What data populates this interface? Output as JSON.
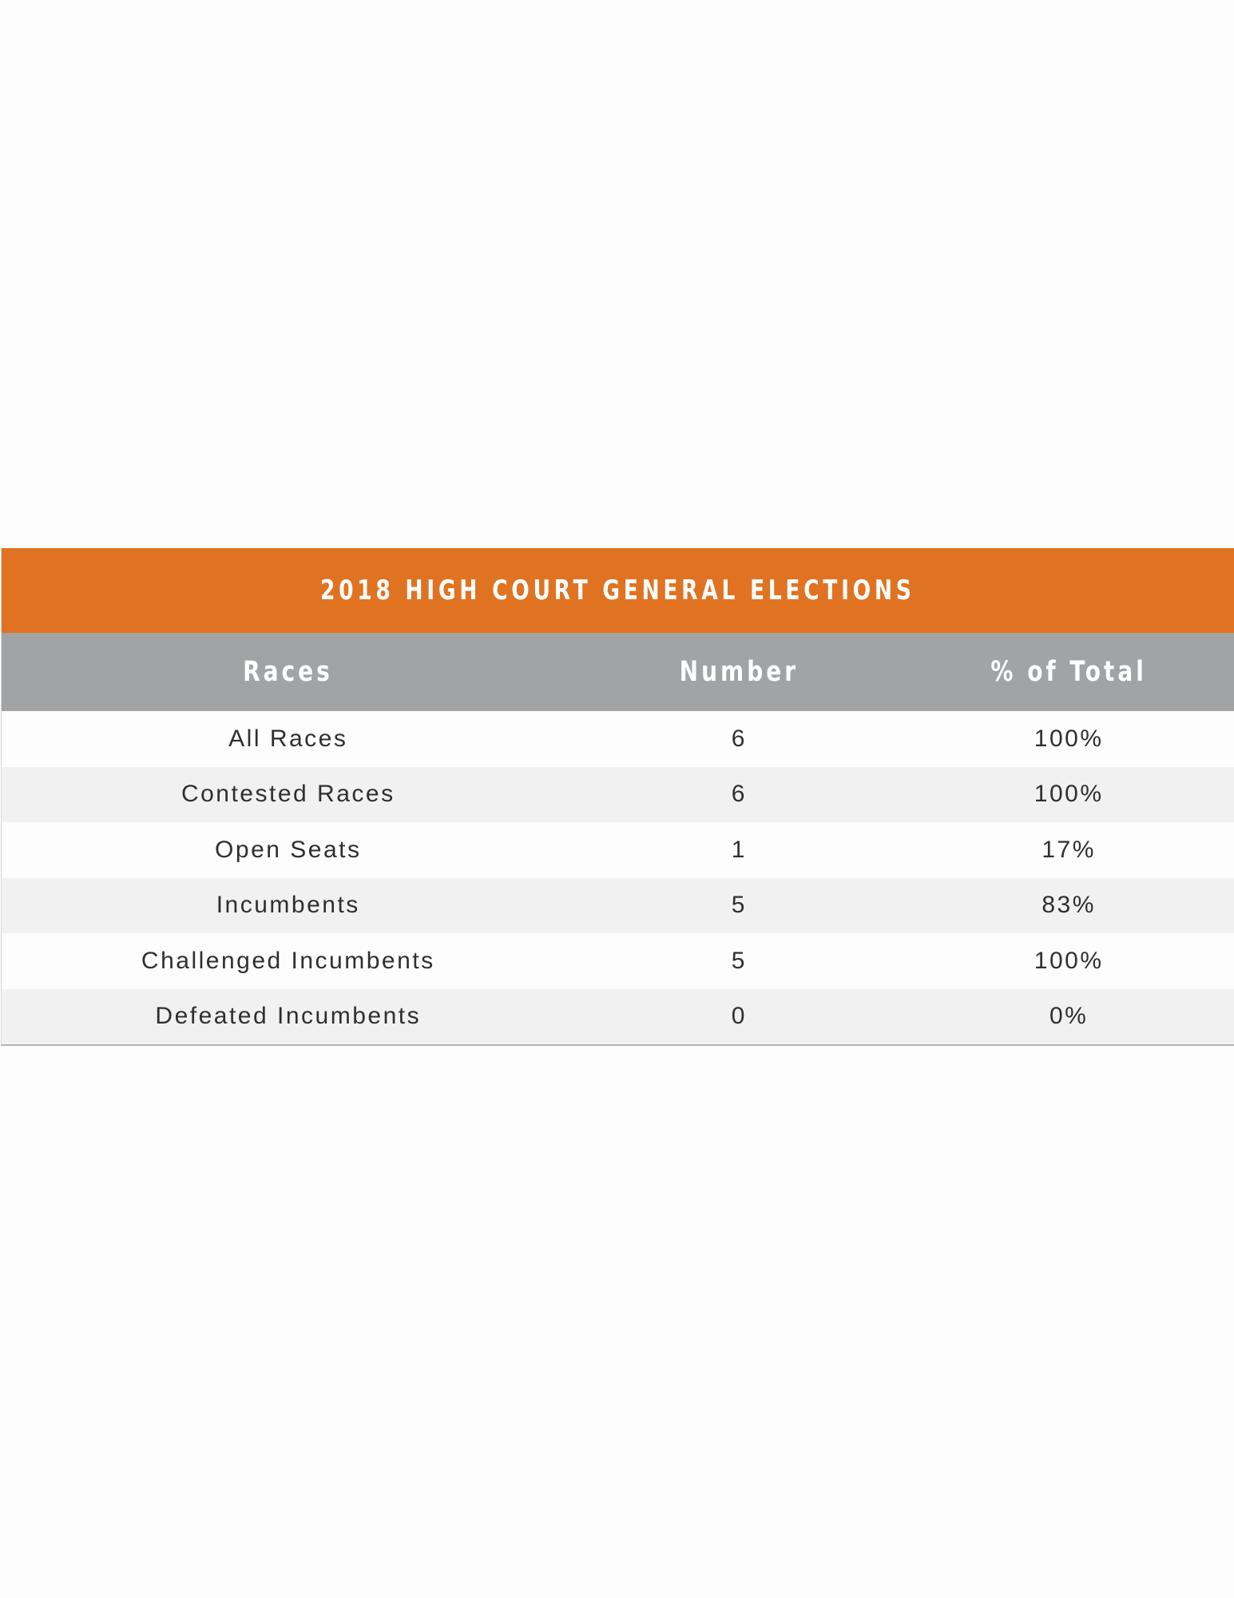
{
  "table": {
    "title": "2018 HIGH COURT GENERAL ELECTIONS",
    "headers": [
      "Races",
      "Number",
      "% of Total"
    ],
    "rows": [
      {
        "race": "All Races",
        "number": "6",
        "percent": "100%"
      },
      {
        "race": "Contested Races",
        "number": "6",
        "percent": "100%"
      },
      {
        "race": "Open Seats",
        "number": "1",
        "percent": "17%"
      },
      {
        "race": "Incumbents",
        "number": "5",
        "percent": "83%"
      },
      {
        "race": "Challenged Incumbents",
        "number": "5",
        "percent": "100%"
      },
      {
        "race": "Defeated Incumbents",
        "number": "0",
        "percent": "0%"
      }
    ],
    "colors": {
      "title_background": "#e07321",
      "header_background": "#a2a3a5",
      "row_alt_background": "#f1f1f1"
    }
  }
}
